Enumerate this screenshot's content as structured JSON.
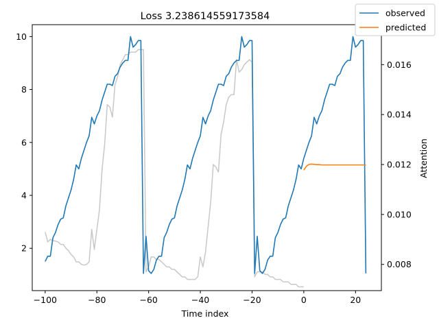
{
  "chart_data": {
    "type": "line",
    "title": "Loss 3.238614559173584",
    "xlabel": "Time index",
    "ylabel": "",
    "y2label": "Attention",
    "xlim": [
      -105,
      30
    ],
    "ylim": [
      0.4,
      10.45
    ],
    "y2lim": [
      0.00695,
      0.0176
    ],
    "xticks": [
      -100,
      -80,
      -60,
      -40,
      -20,
      0,
      20
    ],
    "yticks": [
      2,
      4,
      6,
      8,
      10
    ],
    "y2ticks": [
      0.008,
      0.01,
      0.012,
      0.014,
      0.016
    ],
    "y2tick_labels": [
      "0.008",
      "0.010",
      "0.012",
      "0.014",
      "0.016"
    ],
    "grid": false,
    "legend_position": "top-right",
    "colors": {
      "observed": "#1f77b4",
      "predicted": "#ff7f0e",
      "attention": "#c8c8c8"
    },
    "series": [
      {
        "name": "observed",
        "axis": "left",
        "x": [
          -100,
          -99,
          -98,
          -97,
          -96,
          -95,
          -94,
          -93,
          -92,
          -91,
          -90,
          -89,
          -88,
          -87,
          -86,
          -85,
          -84,
          -83,
          -82,
          -81,
          -80,
          -79,
          -78,
          -77,
          -76,
          -75,
          -74,
          -73,
          -72,
          -71,
          -70,
          -69,
          -68,
          -67,
          -66,
          -65,
          -64,
          -63,
          -62,
          -61,
          -60,
          -59,
          -58,
          -57,
          -56,
          -55,
          -54,
          -53,
          -52,
          -51,
          -50,
          -49,
          -48,
          -47,
          -46,
          -45,
          -44,
          -43,
          -42,
          -41,
          -40,
          -39,
          -38,
          -37,
          -36,
          -35,
          -34,
          -33,
          -32,
          -31,
          -30,
          -29,
          -28,
          -27,
          -26,
          -25,
          -24,
          -23,
          -22,
          -21,
          -20,
          -19,
          -18,
          -17,
          -16,
          -15,
          -14,
          -13,
          -12,
          -11,
          -10,
          -9,
          -8,
          -7,
          -6,
          -5,
          -4,
          -3,
          -2,
          -1,
          0,
          1,
          2,
          3,
          4,
          5,
          6,
          7,
          8,
          9,
          10,
          11,
          12,
          13,
          14,
          15,
          16,
          17,
          18,
          19,
          20,
          21,
          22,
          23,
          24
        ],
        "values": [
          1.5,
          1.7,
          1.7,
          2.4,
          2.6,
          2.9,
          3.1,
          3.15,
          3.6,
          3.9,
          4.2,
          4.6,
          5.15,
          5.0,
          5.4,
          5.7,
          6.0,
          6.25,
          6.95,
          6.7,
          7.0,
          7.2,
          7.6,
          7.9,
          8.2,
          8.2,
          8.15,
          8.5,
          8.6,
          8.85,
          9.0,
          9.1,
          9.1,
          10.0,
          9.6,
          9.7,
          9.85,
          9.85,
          1.05,
          2.45,
          1.15,
          1.05,
          1.2,
          1.55,
          1.7,
          1.7,
          2.4,
          2.6,
          2.9,
          3.1,
          3.15,
          3.6,
          3.9,
          4.2,
          4.6,
          5.15,
          5.0,
          5.4,
          5.7,
          6.0,
          6.25,
          6.95,
          6.7,
          7.0,
          7.2,
          7.6,
          7.9,
          8.2,
          8.2,
          8.15,
          8.5,
          8.6,
          8.85,
          9.0,
          9.1,
          9.1,
          10.0,
          9.6,
          9.7,
          9.85,
          9.85,
          1.05,
          2.45,
          1.15,
          1.05,
          1.2,
          1.55,
          1.7,
          1.7,
          2.4,
          2.6,
          2.9,
          3.1,
          3.15,
          3.6,
          3.9,
          4.2,
          4.6,
          5.15,
          5.0,
          5.4,
          5.7,
          6.0,
          6.25,
          6.95,
          6.7,
          7.0,
          7.2,
          7.6,
          7.9,
          8.2,
          8.2,
          8.15,
          8.5,
          8.6,
          8.85,
          9.0,
          9.1,
          9.1,
          10.0,
          9.6,
          9.7,
          9.85,
          9.85,
          1.05
        ]
      },
      {
        "name": "predicted",
        "axis": "left",
        "x": [
          0,
          1,
          2,
          3,
          4,
          5,
          6,
          7,
          8,
          9,
          10,
          11,
          12,
          13,
          14,
          15,
          16,
          17,
          18,
          19,
          20,
          21,
          22,
          23,
          24
        ],
        "values": [
          4.95,
          5.1,
          5.17,
          5.18,
          5.17,
          5.16,
          5.16,
          5.15,
          5.15,
          5.15,
          5.15,
          5.15,
          5.15,
          5.15,
          5.15,
          5.15,
          5.15,
          5.15,
          5.15,
          5.15,
          5.15,
          5.15,
          5.15,
          5.15,
          5.15
        ]
      },
      {
        "axis": "right",
        "x": [
          -100,
          -99,
          -98,
          -97,
          -96,
          -95,
          -94,
          -93,
          -92,
          -91,
          -90,
          -89,
          -88,
          -87,
          -86,
          -85,
          -84,
          -83,
          -82,
          -81,
          -80,
          -79,
          -78,
          -77,
          -76,
          -75,
          -74,
          -73,
          -72,
          -71,
          -70,
          -69,
          -68,
          -67,
          -66,
          -65,
          -64,
          -63,
          -62,
          -61,
          -60,
          -59,
          -58,
          -57,
          -56,
          -55,
          -54,
          -53,
          -52,
          -51,
          -50,
          -49,
          -48,
          -47,
          -46,
          -45,
          -44,
          -43,
          -42,
          -41,
          -40,
          -39,
          -38,
          -37,
          -36,
          -35,
          -34,
          -33,
          -32,
          -31,
          -30,
          -29,
          -28,
          -27,
          -26,
          -25,
          -24,
          -23,
          -22,
          -21,
          -20,
          -19,
          -18,
          -17,
          -16,
          -15,
          -14,
          -13,
          -12,
          -11,
          -10,
          -9,
          -8,
          -7,
          -6,
          -5,
          -4,
          -3,
          -2,
          -1,
          0
        ],
        "values": [
          0.0093,
          0.0089,
          0.009,
          0.00895,
          0.00893,
          0.0089,
          0.0088,
          0.0088,
          0.00865,
          0.00855,
          0.0084,
          0.0083,
          0.0081,
          0.0081,
          0.008,
          0.00797,
          0.008,
          0.0081,
          0.0094,
          0.0086,
          0.0094,
          0.0102,
          0.0118,
          0.0128,
          0.0144,
          0.0143,
          0.0139,
          0.0152,
          0.0155,
          0.016,
          0.0162,
          0.0164,
          0.0164,
          0.0165,
          0.0165,
          0.0165,
          0.0166,
          0.0166,
          0.0166,
          0.0077,
          0.0079,
          0.0083,
          0.0083,
          0.0082,
          0.0082,
          0.0081,
          0.008,
          0.0079,
          0.0079,
          0.0078,
          0.0078,
          0.0077,
          0.0076,
          0.0075,
          0.0075,
          0.0074,
          0.0074,
          0.0074,
          0.0074,
          0.0075,
          0.0083,
          0.0079,
          0.0085,
          0.0095,
          0.0105,
          0.012,
          0.0119,
          0.0117,
          0.0132,
          0.0137,
          0.0144,
          0.0147,
          0.0148,
          0.0148,
          0.0162,
          0.0157,
          0.0158,
          0.016,
          0.0161,
          0.0162,
          0.0161,
          0.0075,
          0.0077,
          0.0077,
          0.0077,
          0.0076,
          0.0076,
          0.0075,
          0.0075,
          0.0074,
          0.0074,
          0.0074,
          0.0073,
          0.0073,
          0.0073,
          0.0072,
          0.0072,
          0.0072,
          0.0071,
          0.0071,
          0.0071
        ]
      }
    ]
  }
}
